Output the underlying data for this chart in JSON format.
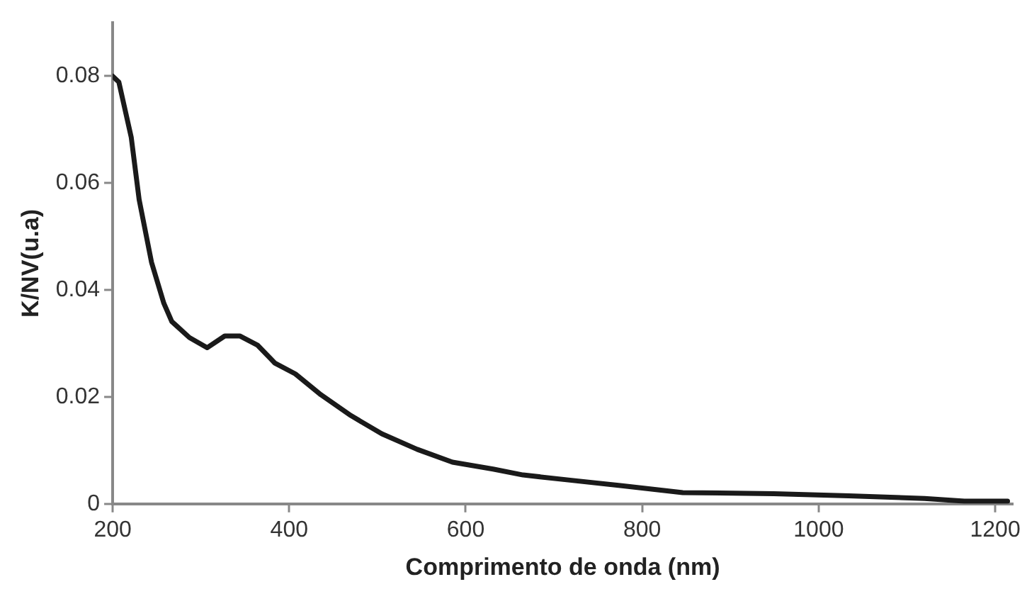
{
  "chart_data": {
    "type": "line",
    "xlabel": "Comprimento de onda (nm)",
    "ylabel": "K/NV(u.a)",
    "xlim": [
      200,
      1220
    ],
    "xticks": [
      200,
      400,
      600,
      800,
      1000,
      1200
    ],
    "ylim": [
      0,
      0.09
    ],
    "yticks": [
      0,
      0.02,
      0.04,
      0.06,
      0.08
    ],
    "grid": false,
    "legend": false,
    "marker": "none",
    "line_style": "solid",
    "series": [
      {
        "color": "#1a1a1a",
        "x": [
          200,
          207,
          221,
          230,
          244,
          258,
          267,
          287,
          307,
          327,
          344,
          364,
          384,
          407,
          436,
          470,
          505,
          545,
          585,
          631,
          665,
          720,
          777,
          846,
          949,
          1034,
          1120,
          1165,
          1214
        ],
        "values": [
          0.08,
          0.0789,
          0.0686,
          0.0569,
          0.0452,
          0.0375,
          0.0341,
          0.0311,
          0.0292,
          0.0314,
          0.0314,
          0.0297,
          0.0263,
          0.0243,
          0.0204,
          0.0165,
          0.0131,
          0.0102,
          0.0078,
          0.0065,
          0.0054,
          0.0044,
          0.0034,
          0.0021,
          0.0019,
          0.0015,
          0.001,
          0.0005,
          0.0005
        ]
      }
    ]
  }
}
